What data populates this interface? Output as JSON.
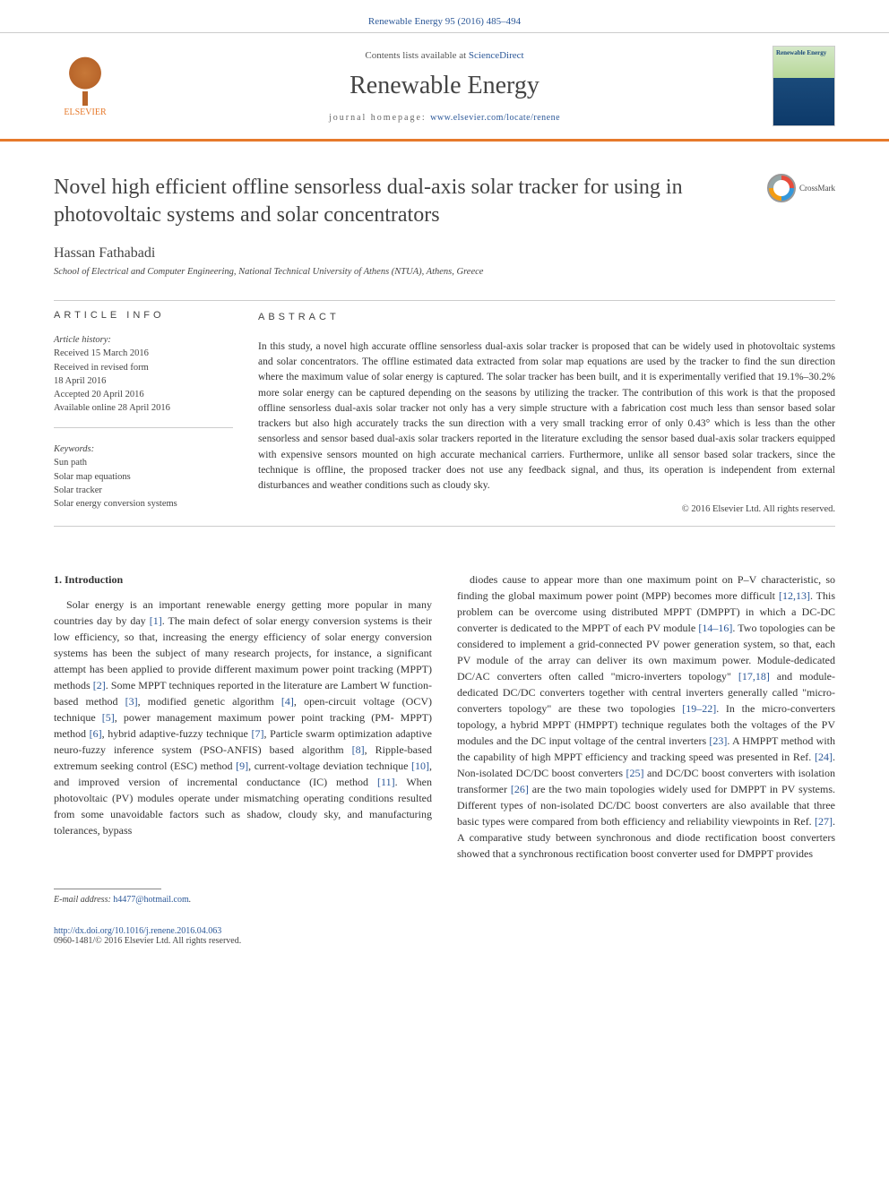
{
  "header": {
    "citation": "Renewable Energy 95 (2016) 485–494"
  },
  "masthead": {
    "publisher": "ELSEVIER",
    "contents_prefix": "Contents lists available at ",
    "contents_link": "ScienceDirect",
    "journal_name": "Renewable Energy",
    "homepage_prefix": "journal homepage: ",
    "homepage_url": "www.elsevier.com/locate/renene",
    "cover_title": "Renewable Energy",
    "bar_color": "#e6792b"
  },
  "title_block": {
    "title": "Novel high efficient offline sensorless dual-axis solar tracker for using in photovoltaic systems and solar concentrators",
    "crossmark_label": "CrossMark"
  },
  "author": {
    "name": "Hassan Fathabadi",
    "affiliation": "School of Electrical and Computer Engineering, National Technical University of Athens (NTUA), Athens, Greece"
  },
  "article_info": {
    "heading": "ARTICLE INFO",
    "history_head": "Article history:",
    "history": [
      "Received 15 March 2016",
      "Received in revised form",
      "18 April 2016",
      "Accepted 20 April 2016",
      "Available online 28 April 2016"
    ],
    "keywords_head": "Keywords:",
    "keywords": [
      "Sun path",
      "Solar map equations",
      "Solar tracker",
      "Solar energy conversion systems"
    ]
  },
  "abstract": {
    "heading": "ABSTRACT",
    "text": "In this study, a novel high accurate offline sensorless dual-axis solar tracker is proposed that can be widely used in photovoltaic systems and solar concentrators. The offline estimated data extracted from solar map equations are used by the tracker to find the sun direction where the maximum value of solar energy is captured. The solar tracker has been built, and it is experimentally verified that 19.1%–30.2% more solar energy can be captured depending on the seasons by utilizing the tracker. The contribution of this work is that the proposed offline sensorless dual-axis solar tracker not only has a very simple structure with a fabrication cost much less than sensor based solar trackers but also high accurately tracks the sun direction with a very small tracking error of only 0.43° which is less than the other sensorless and sensor based dual-axis solar trackers reported in the literature excluding the sensor based dual-axis solar trackers equipped with expensive sensors mounted on high accurate mechanical carriers. Furthermore, unlike all sensor based solar trackers, since the technique is offline, the proposed tracker does not use any feedback signal, and thus, its operation is independent from external disturbances and weather conditions such as cloudy sky.",
    "copyright": "© 2016 Elsevier Ltd. All rights reserved."
  },
  "body": {
    "section_number": "1.",
    "section_title": "Introduction",
    "col1": "Solar energy is an important renewable energy getting more popular in many countries day by day [1]. The main defect of solar energy conversion systems is their low efficiency, so that, increasing the energy efficiency of solar energy conversion systems has been the subject of many research projects, for instance, a significant attempt has been applied to provide different maximum power point tracking (MPPT) methods [2]. Some MPPT techniques reported in the literature are Lambert W function-based method [3], modified genetic algorithm [4], open-circuit voltage (OCV) technique [5], power management maximum power point tracking (PM- MPPT) method [6], hybrid adaptive-fuzzy technique [7], Particle swarm optimization adaptive neuro-fuzzy inference system (PSO-ANFIS) based algorithm [8], Ripple-based extremum seeking control (ESC) method [9], current-voltage deviation technique [10], and improved version of incremental conductance (IC) method [11]. When photovoltaic (PV) modules operate under mismatching operating conditions resulted from some unavoidable factors such as shadow, cloudy sky, and manufacturing tolerances, bypass",
    "col2": "diodes cause to appear more than one maximum point on P–V characteristic, so finding the global maximum power point (MPP) becomes more difficult [12,13]. This problem can be overcome using distributed MPPT (DMPPT) in which a DC-DC converter is dedicated to the MPPT of each PV module [14–16]. Two topologies can be considered to implement a grid-connected PV power generation system, so that, each PV module of the array can deliver its own maximum power. Module-dedicated DC/AC converters often called \"micro-inverters topology\" [17,18] and module-dedicated DC/DC converters together with central inverters generally called \"micro-converters topology\" are these two topologies [19–22]. In the micro-converters topology, a hybrid MPPT (HMPPT) technique regulates both the voltages of the PV modules and the DC input voltage of the central inverters [23]. A HMPPT method with the capability of high MPPT efficiency and tracking speed was presented in Ref. [24]. Non-isolated DC/DC boost converters [25] and DC/DC boost converters with isolation transformer [26] are the two main topologies widely used for DMPPT in PV systems. Different types of non-isolated DC/DC boost converters are also available that three basic types were compared from both efficiency and reliability viewpoints in Ref. [27]. A comparative study between synchronous and diode rectification boost converters showed that a synchronous rectification boost converter used for DMPPT provides"
  },
  "footer": {
    "email_prefix": "E-mail address: ",
    "email": "h4477@hotmail.com",
    "email_suffix": ".",
    "doi": "http://dx.doi.org/10.1016/j.renene.2016.04.063",
    "issn_copyright": "0960-1481/© 2016 Elsevier Ltd. All rights reserved."
  },
  "colors": {
    "link": "#2c5898",
    "accent": "#e6792b",
    "text": "#333333"
  }
}
